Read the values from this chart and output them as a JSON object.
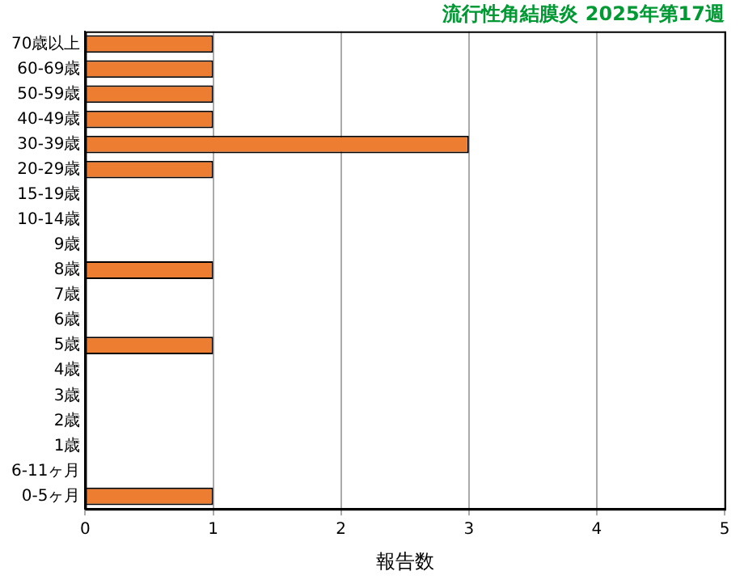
{
  "chart_data": {
    "type": "bar",
    "orientation": "horizontal",
    "title": "流行性角結膜炎 2025年第17週",
    "xlabel": "報告数",
    "categories": [
      "70歳以上",
      "60-69歳",
      "50-59歳",
      "40-49歳",
      "30-39歳",
      "20-29歳",
      "15-19歳",
      "10-14歳",
      "9歳",
      "8歳",
      "7歳",
      "6歳",
      "5歳",
      "4歳",
      "3歳",
      "2歳",
      "1歳",
      "6-11ヶ月",
      "0-5ヶ月"
    ],
    "values": [
      1,
      1,
      1,
      1,
      3,
      1,
      0,
      0,
      0,
      1,
      0,
      0,
      1,
      0,
      0,
      0,
      0,
      0,
      1
    ],
    "color": "#ed7d31",
    "xlim": [
      0,
      5
    ],
    "xticks": [
      0,
      1,
      2,
      3,
      4,
      5
    ],
    "grid": "x",
    "legend": false
  }
}
